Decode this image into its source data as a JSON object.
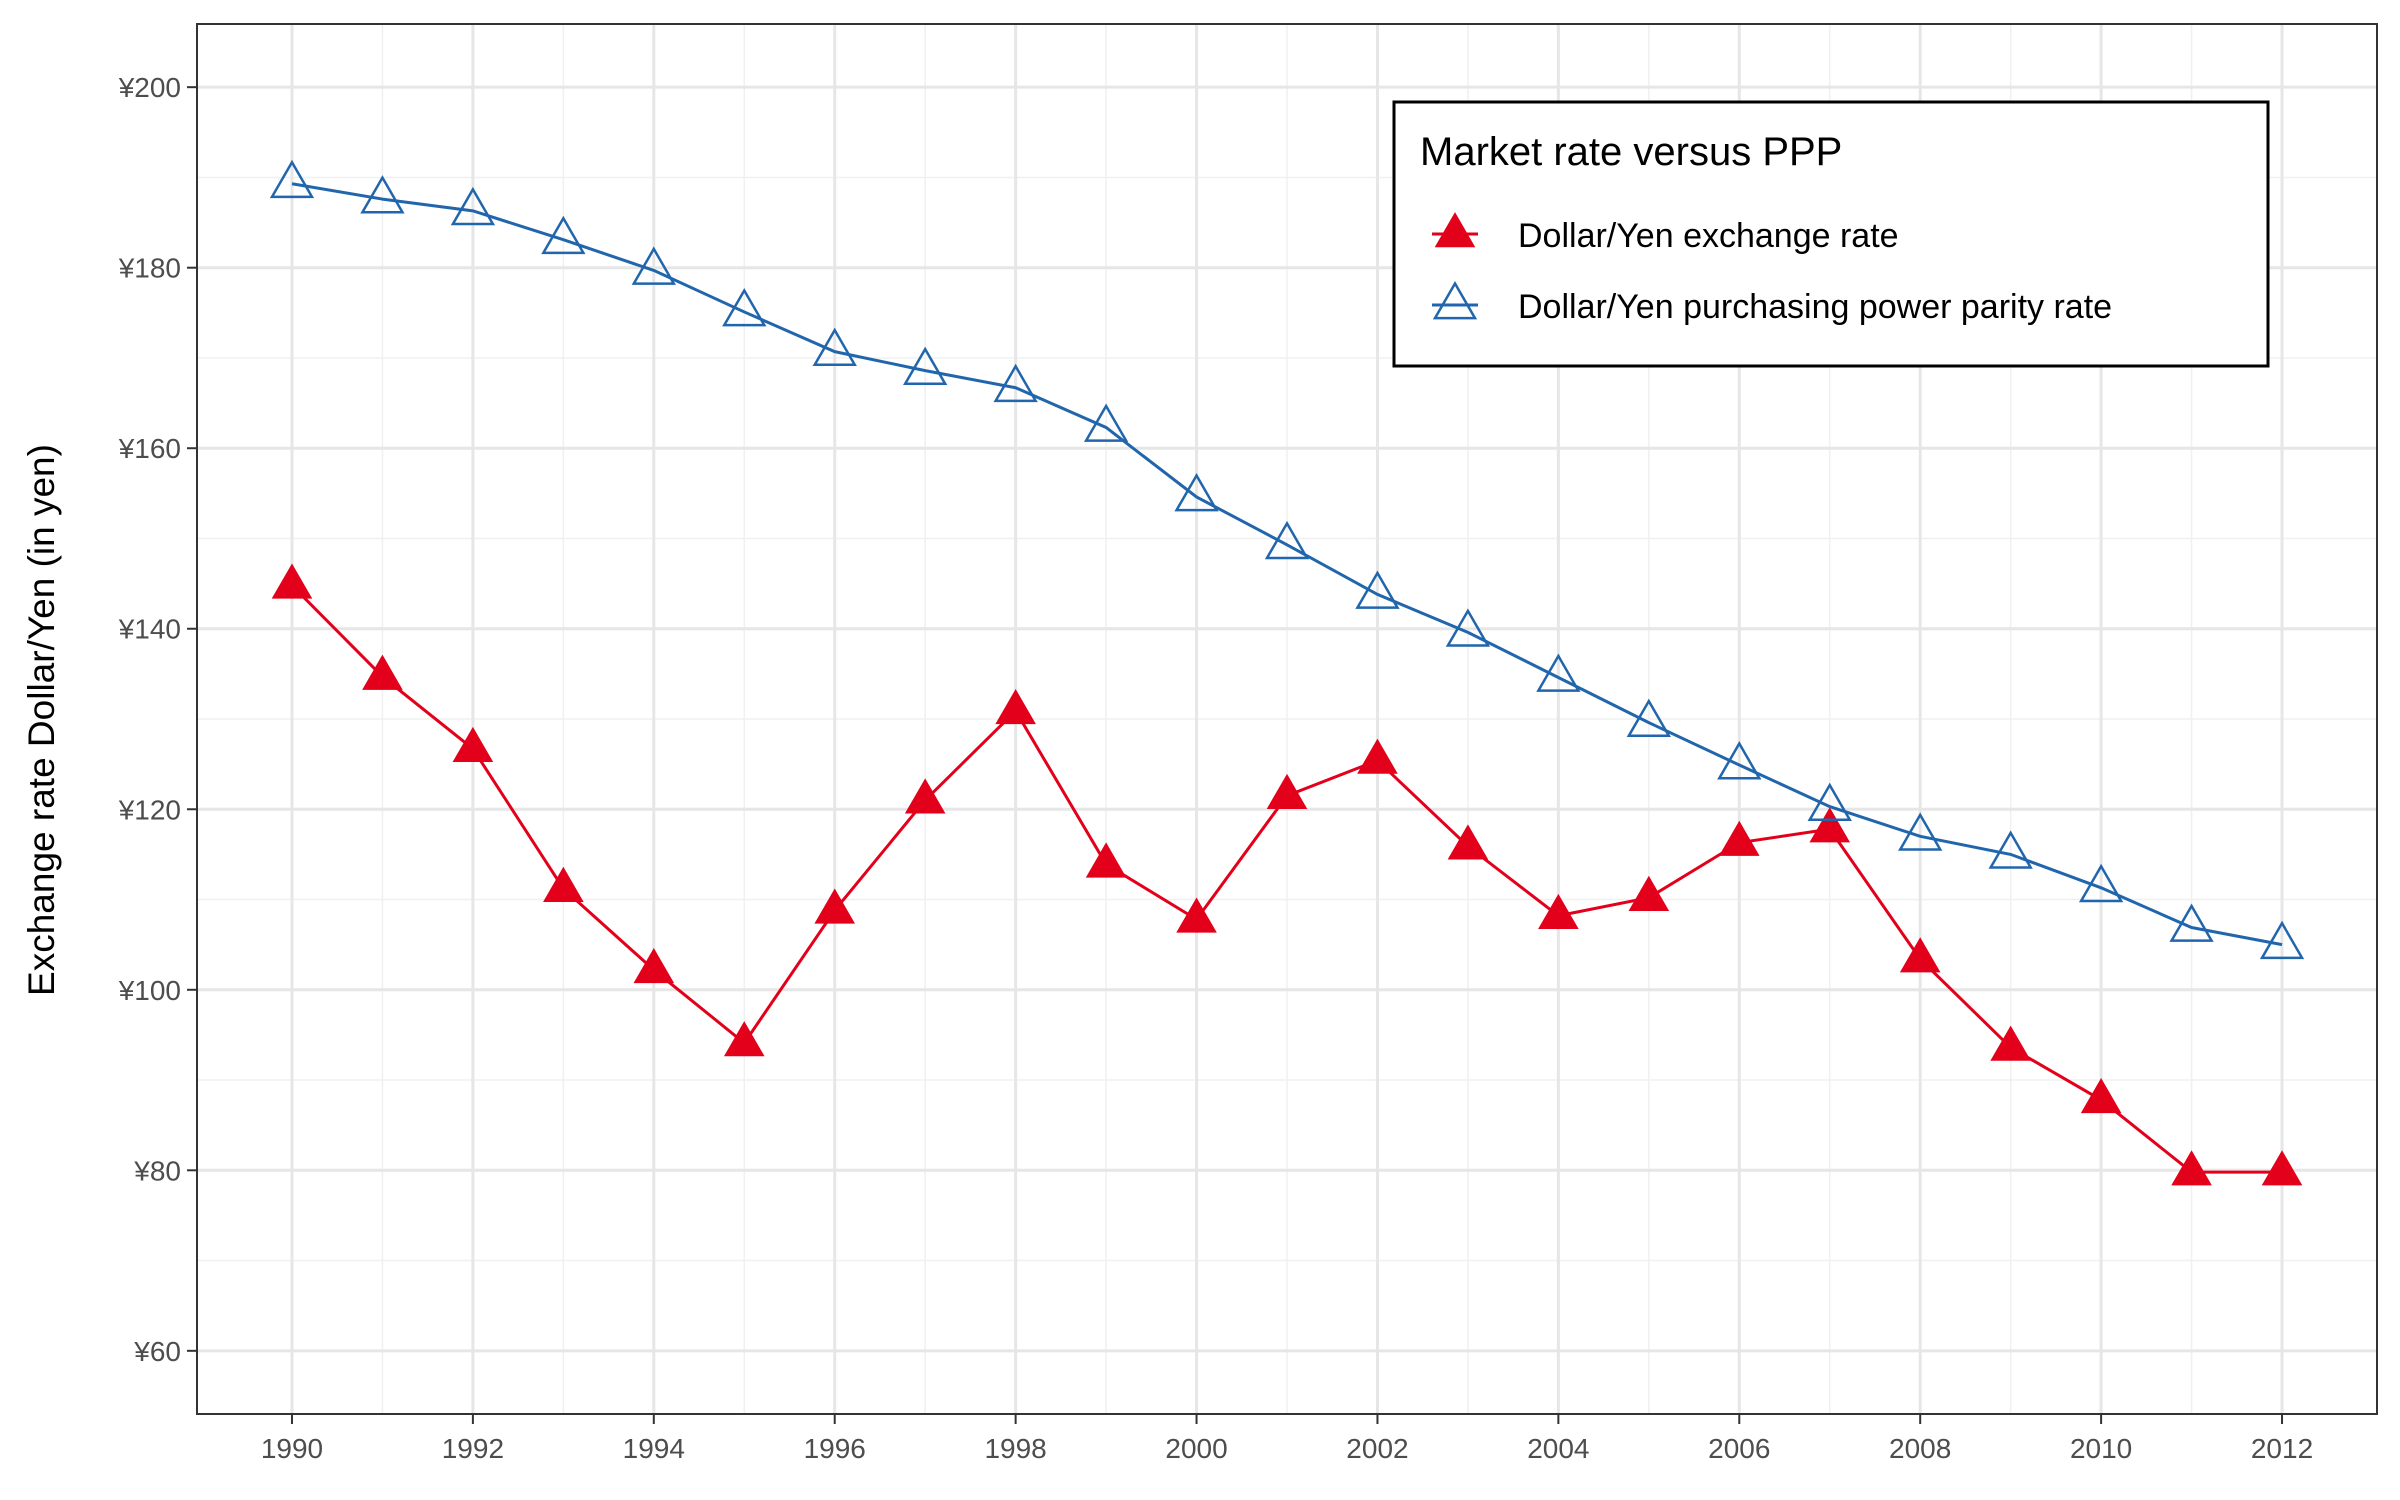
{
  "chart_data": {
    "type": "line",
    "title": "",
    "xlabel": "",
    "ylabel": "Exchange rate Dollar/Yen (in yen)",
    "x": [
      1990,
      1991,
      1992,
      1993,
      1994,
      1995,
      1996,
      1997,
      1998,
      1999,
      2000,
      2001,
      2002,
      2003,
      2004,
      2005,
      2006,
      2007,
      2008,
      2009,
      2010,
      2011,
      2012
    ],
    "xlim": [
      1988.95,
      2013.05
    ],
    "ylim": [
      53,
      207
    ],
    "x_ticks": [
      1990,
      1992,
      1994,
      1996,
      1998,
      2000,
      2002,
      2004,
      2006,
      2008,
      2010,
      2012
    ],
    "x_tick_labels": [
      "1990",
      "1992",
      "1994",
      "1996",
      "1998",
      "2000",
      "2002",
      "2004",
      "2006",
      "2008",
      "2010",
      "2012"
    ],
    "y_ticks": [
      60,
      80,
      100,
      120,
      140,
      160,
      180,
      200
    ],
    "y_tick_labels": [
      "¥60",
      "¥80",
      "¥100",
      "¥120",
      "¥140",
      "¥160",
      "¥180",
      "¥200"
    ],
    "grid": true,
    "legend": {
      "title": "Market rate versus PPP",
      "position": "top-right"
    },
    "series": [
      {
        "name": "Dollar/Yen exchange rate",
        "color": "#e3001b",
        "marker": "filled-triangle",
        "values": [
          144.8,
          134.7,
          126.7,
          111.2,
          102.2,
          94.1,
          108.8,
          121.0,
          130.9,
          113.9,
          107.8,
          121.5,
          125.4,
          115.9,
          108.2,
          110.2,
          116.3,
          117.8,
          103.4,
          93.6,
          87.8,
          79.8,
          79.8
        ]
      },
      {
        "name": "Dollar/Yen purchasing power parity rate",
        "color": "#2166ac",
        "marker": "open-triangle",
        "values": [
          189.3,
          187.6,
          186.3,
          183.1,
          179.7,
          175.1,
          170.7,
          168.6,
          166.7,
          162.3,
          154.6,
          149.3,
          143.8,
          139.6,
          134.6,
          129.6,
          124.9,
          120.3,
          117.0,
          115.0,
          111.3,
          106.9,
          105.0
        ]
      }
    ]
  }
}
